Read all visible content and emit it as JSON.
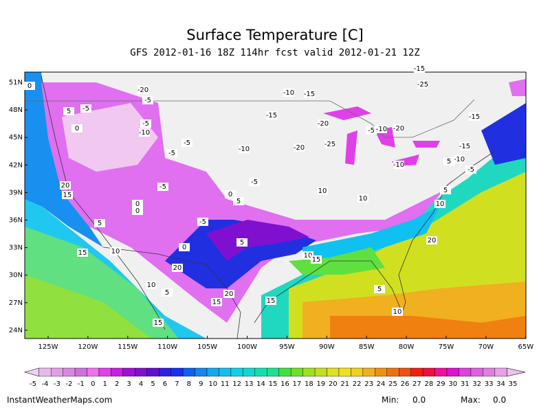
{
  "header": {
    "title": "Surface Temperature [C]",
    "subtitle": "GFS 2012-01-16 18Z 114hr fcst valid 2012-01-21 12Z"
  },
  "map": {
    "lat_labels": [
      "51N",
      "48N",
      "45N",
      "42N",
      "39N",
      "36N",
      "33N",
      "30N",
      "27N",
      "24N"
    ],
    "lon_labels": [
      "125W",
      "120W",
      "115W",
      "110W",
      "105W",
      "100W",
      "95W",
      "90W",
      "85W",
      "80W",
      "75W",
      "70W",
      "65W"
    ],
    "contour_labels": [
      0,
      -20,
      -5,
      -5,
      5,
      0,
      -5,
      -10,
      -5,
      -5,
      -10,
      -5,
      -10,
      -15,
      -20,
      -25,
      -15,
      -20,
      -15,
      -25,
      -15,
      -20,
      -5,
      -10,
      -15,
      -10,
      -5,
      5,
      -10,
      -5,
      0,
      5,
      10,
      10,
      0,
      0,
      -5,
      5,
      10,
      15,
      20,
      5,
      0,
      5,
      10,
      15,
      10,
      15,
      10,
      5,
      20,
      20,
      15,
      15,
      5,
      10,
      15,
      20
    ]
  },
  "colorbar": {
    "labels": [
      -5,
      -4,
      -3,
      -2,
      -1,
      0,
      1,
      2,
      3,
      4,
      5,
      6,
      7,
      8,
      9,
      10,
      11,
      12,
      13,
      14,
      15,
      16,
      17,
      18,
      19,
      20,
      21,
      22,
      23,
      24,
      25,
      26,
      27,
      28,
      29,
      30,
      31,
      32,
      33,
      34,
      35
    ],
    "colors": [
      "#f0d0f0",
      "#e8b8ec",
      "#e0a0e8",
      "#d888e4",
      "#d070e0",
      "#f070f0",
      "#e040e8",
      "#c820e0",
      "#a010d8",
      "#8010d0",
      "#6010d0",
      "#3020e0",
      "#1830f0",
      "#1060f0",
      "#1088f0",
      "#10a8f0",
      "#10c0f0",
      "#10d0e8",
      "#10d8d0",
      "#10e0b0",
      "#20e090",
      "#40e040",
      "#70e020",
      "#a0e020",
      "#c0e020",
      "#e0e020",
      "#f0e020",
      "#f0d020",
      "#f0b020",
      "#f09010",
      "#f07010",
      "#f05010",
      "#f02010",
      "#f01040",
      "#f010a0",
      "#e010d0",
      "#e040e0",
      "#e060e0",
      "#e080e0",
      "#e8a0e8",
      "#f0c0f0"
    ]
  },
  "footer": {
    "site": "InstantWeatherMaps.com",
    "min_label": "Min:",
    "min_value": "0.0",
    "max_label": "Max:",
    "max_value": "0.0"
  }
}
